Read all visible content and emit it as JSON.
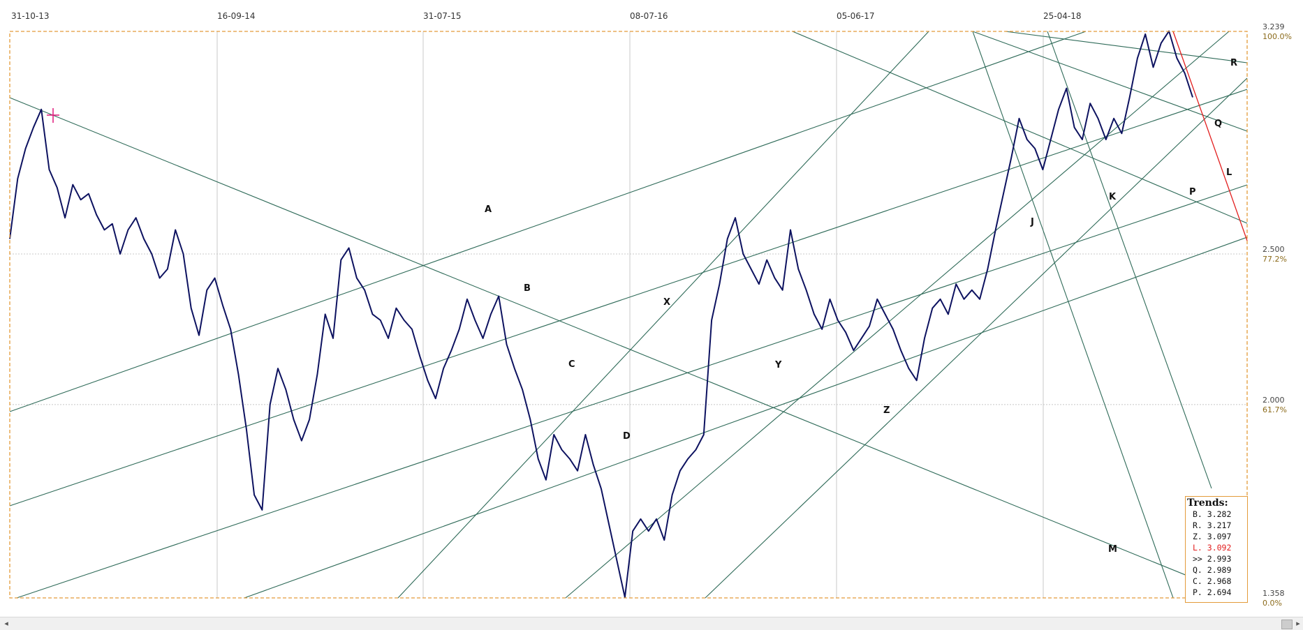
{
  "chart_data": {
    "type": "line",
    "title": "",
    "x_labels": [
      "31-10-13",
      "16-09-14",
      "31-07-15",
      "08-07-16",
      "05-06-17",
      "25-04-18"
    ],
    "y_ticks": [
      {
        "value": 3.239,
        "label": "3.239",
        "pct": "100.0%"
      },
      {
        "value": 2.5,
        "label": "2.500",
        "pct": "77.2%"
      },
      {
        "value": 2.0,
        "label": "2.000",
        "pct": "61.7%"
      },
      {
        "value": 1.358,
        "label": "1.358",
        "pct": "0.0%"
      }
    ],
    "ylim": [
      1.358,
      3.239
    ],
    "grid": true,
    "series": [
      {
        "color": "#0d1260",
        "values": [
          2.55,
          2.75,
          2.85,
          2.92,
          2.98,
          2.78,
          2.72,
          2.62,
          2.73,
          2.68,
          2.7,
          2.63,
          2.58,
          2.6,
          2.5,
          2.58,
          2.62,
          2.55,
          2.5,
          2.42,
          2.45,
          2.58,
          2.5,
          2.32,
          2.23,
          2.38,
          2.42,
          2.33,
          2.25,
          2.1,
          1.92,
          1.7,
          1.65,
          2.0,
          2.12,
          2.05,
          1.95,
          1.88,
          1.95,
          2.1,
          2.3,
          2.22,
          2.48,
          2.52,
          2.42,
          2.38,
          2.3,
          2.28,
          2.22,
          2.32,
          2.28,
          2.25,
          2.16,
          2.08,
          2.02,
          2.12,
          2.18,
          2.25,
          2.35,
          2.28,
          2.22,
          2.3,
          2.36,
          2.2,
          2.12,
          2.05,
          1.95,
          1.82,
          1.75,
          1.9,
          1.85,
          1.82,
          1.78,
          1.9,
          1.8,
          1.72,
          1.6,
          1.48,
          1.36,
          1.58,
          1.62,
          1.58,
          1.62,
          1.55,
          1.7,
          1.78,
          1.82,
          1.85,
          1.9,
          2.28,
          2.4,
          2.55,
          2.62,
          2.5,
          2.45,
          2.4,
          2.48,
          2.42,
          2.38,
          2.58,
          2.45,
          2.38,
          2.3,
          2.25,
          2.35,
          2.28,
          2.24,
          2.18,
          2.22,
          2.26,
          2.35,
          2.3,
          2.25,
          2.18,
          2.12,
          2.08,
          2.22,
          2.32,
          2.35,
          2.3,
          2.4,
          2.35,
          2.38,
          2.35,
          2.45,
          2.58,
          2.7,
          2.82,
          2.95,
          2.88,
          2.85,
          2.78,
          2.88,
          2.98,
          3.05,
          2.92,
          2.88,
          3.0,
          2.95,
          2.88,
          2.95,
          2.9,
          3.02,
          3.15,
          3.23,
          3.12,
          3.2,
          3.24,
          3.15,
          3.1,
          3.02
        ]
      }
    ],
    "trendline_labels": [
      "A",
      "B",
      "C",
      "D",
      "X",
      "Y",
      "Z",
      "J",
      "K",
      "M",
      "P",
      "Q",
      "R",
      "L"
    ],
    "trends_box": {
      "title": "Trends:",
      "rows": [
        {
          "label": "B.",
          "value": "3.282",
          "highlight": false
        },
        {
          "label": "R.",
          "value": "3.217",
          "highlight": false
        },
        {
          "label": "Z.",
          "value": "3.097",
          "highlight": false
        },
        {
          "label": "L.",
          "value": "3.092",
          "highlight": true
        },
        {
          "label": ">>",
          "value": "2.993",
          "highlight": false
        },
        {
          "label": "Q.",
          "value": "2.989",
          "highlight": false
        },
        {
          "label": "C.",
          "value": "2.968",
          "highlight": false
        },
        {
          "label": "P.",
          "value": "2.694",
          "highlight": false
        }
      ]
    },
    "colors": {
      "price": "#0d1260",
      "trendline": "#2e6a58",
      "highlight_trend": "#e21e1e",
      "frame": "#e39b3a",
      "marker": "#e0187a",
      "grid": "#c8c8c8"
    }
  },
  "scrollbar": {
    "left_arrow": "◂",
    "right_arrow": "▸"
  }
}
